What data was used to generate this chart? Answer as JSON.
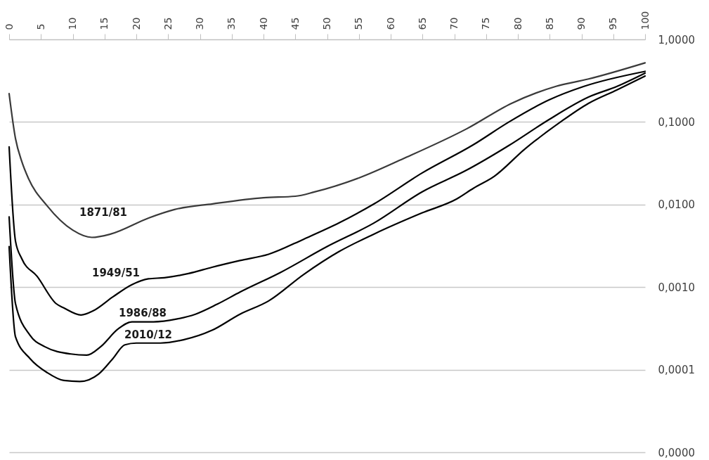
{
  "chart_data": {
    "type": "line",
    "log": "y",
    "grid": "y",
    "xlim": [
      0,
      100
    ],
    "xticks": [
      0,
      5,
      10,
      15,
      20,
      25,
      30,
      35,
      40,
      45,
      50,
      55,
      60,
      65,
      70,
      75,
      80,
      85,
      90,
      95,
      100
    ],
    "ylim": [
      1e-05,
      1
    ],
    "yticks": [
      {
        "value": 1,
        "label": "1,0000"
      },
      {
        "value": 0.1,
        "label": "0,1000"
      },
      {
        "value": 0.01,
        "label": "0,0100"
      },
      {
        "value": 0.001,
        "label": "0,0010"
      },
      {
        "value": 0.0001,
        "label": "0,0001"
      },
      {
        "value": 1e-05,
        "label": "0,0000"
      }
    ],
    "series": [
      {
        "name": "1871/81",
        "color": "#3a3a3a",
        "x": [
          0,
          1,
          2,
          3,
          6,
          10,
          13,
          16,
          22,
          26,
          32,
          40,
          45,
          48,
          55,
          62,
          72,
          79,
          86,
          91,
          100
        ],
        "values": [
          0.22,
          0.063,
          0.033,
          0.021,
          0.0096,
          0.0049,
          0.004,
          0.0044,
          0.0069,
          0.0087,
          0.0102,
          0.0121,
          0.0126,
          0.0142,
          0.021,
          0.036,
          0.083,
          0.168,
          0.27,
          0.33,
          0.52
        ]
      },
      {
        "name": "1949/51",
        "color": "#000000",
        "x": [
          0,
          1,
          2,
          4.4,
          7.4,
          8.6,
          11.3,
          13.3,
          16.3,
          19.3,
          21.9,
          24.4,
          28.2,
          31.9,
          36.3,
          40.8,
          46.3,
          51.9,
          57.4,
          64.9,
          73,
          78.6,
          84.9,
          90.4,
          100
        ],
        "values": [
          0.05,
          0.0036,
          0.0022,
          0.00135,
          0.00063,
          0.00056,
          0.00046,
          0.00052,
          0.00076,
          0.00107,
          0.00126,
          0.0013,
          0.00146,
          0.00174,
          0.0021,
          0.0025,
          0.0038,
          0.006,
          0.0102,
          0.024,
          0.053,
          0.1,
          0.185,
          0.27,
          0.41
        ]
      },
      {
        "name": "1986/88",
        "color": "#000000",
        "x": [
          0,
          1,
          3.3,
          5.6,
          9.7,
          12.2,
          14.4,
          17.1,
          19.3,
          22.7,
          26.3,
          29.3,
          32.7,
          36.3,
          42.7,
          50,
          57.4,
          64.9,
          71.9,
          78.6,
          84.9,
          91.1,
          95.6,
          100
        ],
        "values": [
          0.0071,
          0.00063,
          0.00026,
          0.00019,
          0.000155,
          0.00015,
          0.00019,
          0.00031,
          0.00038,
          0.00038,
          0.00041,
          0.00047,
          0.00062,
          0.00087,
          0.00151,
          0.0031,
          0.006,
          0.0142,
          0.026,
          0.052,
          0.107,
          0.2,
          0.27,
          0.39
        ]
      },
      {
        "name": "2010/12",
        "color": "#000000",
        "x": [
          0,
          1,
          3.3,
          6,
          8.6,
          11.1,
          14.1,
          16.3,
          18.2,
          20,
          23.8,
          27.4,
          31.9,
          36.3,
          40.8,
          46.3,
          51.9,
          57.4,
          64.9,
          70.4,
          73,
          76.3,
          81.1,
          86.7,
          91.1,
          95.6,
          100
        ],
        "values": [
          0.0031,
          0.00025,
          0.000136,
          9.2e-05,
          7.4e-05,
          7.2e-05,
          8.9e-05,
          0.000136,
          0.0002,
          0.00021,
          0.00021,
          0.00023,
          0.0003,
          0.00047,
          0.00068,
          0.00142,
          0.0027,
          0.0044,
          0.0079,
          0.0117,
          0.0157,
          0.022,
          0.047,
          0.1,
          0.168,
          0.245,
          0.36
        ]
      }
    ]
  }
}
